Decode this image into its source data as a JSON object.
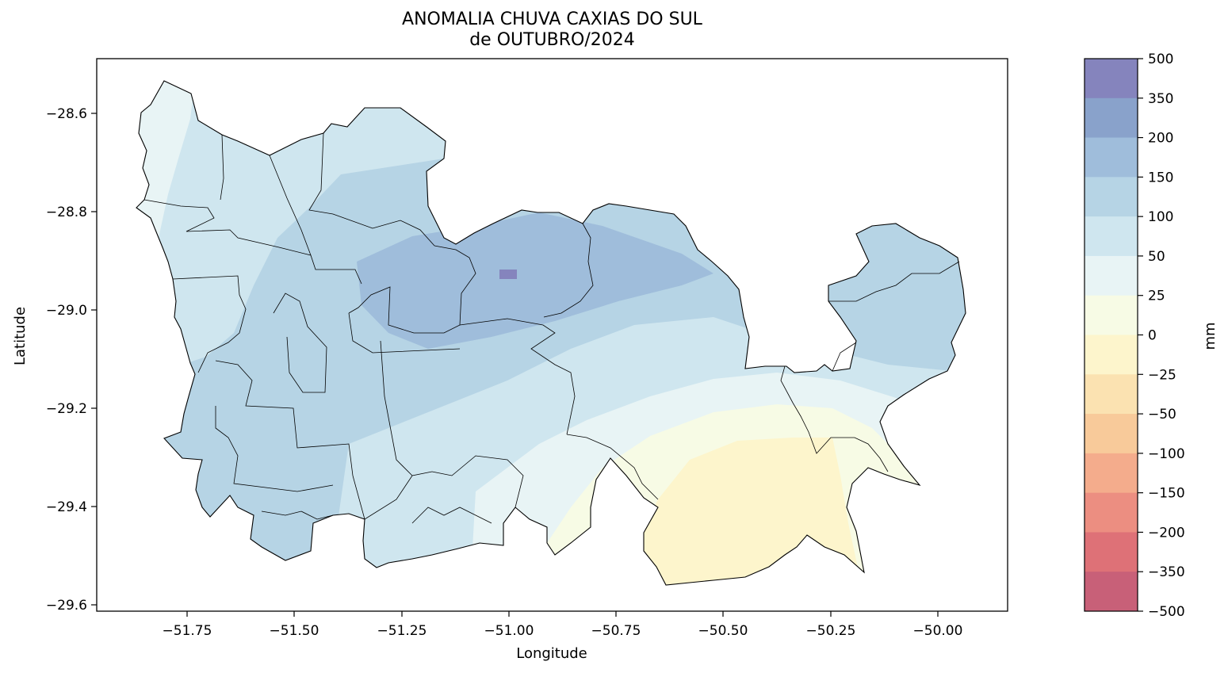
{
  "title_line1": "ANOMALIA CHUVA CAXIAS DO SUL",
  "title_line2": "de OUTUBRO/2024",
  "map": {
    "xlabel": "Longitude",
    "ylabel": "Latitude",
    "x_ticks": [
      "−51.75",
      "−51.50",
      "−51.25",
      "−51.00",
      "−50.75",
      "−50.50",
      "−50.25",
      "−50.00"
    ],
    "y_ticks": [
      "−28.6",
      "−28.8",
      "−29.0",
      "−29.2",
      "−29.4",
      "−29.6"
    ],
    "lon_range": [
      -51.96,
      -49.83
    ],
    "lat_range": [
      -29.62,
      -28.5
    ],
    "anomaly_zones_mm": {
      "northwest": "50 to 100",
      "central_north": "150 to 200",
      "center": "100 to 150",
      "east_north": "50 to 100",
      "southeast_strip": "25 to 50 / 0 to 25",
      "south_east_core": "-25 to 0"
    }
  },
  "colorbar": {
    "label": "mm",
    "levels": [
      "500",
      "350",
      "200",
      "150",
      "100",
      "50",
      "25",
      "0",
      "−25",
      "−50",
      "−100",
      "−150",
      "−200",
      "−350",
      "−500"
    ],
    "colors": [
      "#8584bd",
      "#89a2cb",
      "#9fbddb",
      "#b6d4e5",
      "#cfe6ef",
      "#e8f4f5",
      "#f7fbe5",
      "#fdf5cc",
      "#fbe2b1",
      "#f8ca9a",
      "#f4ac8c",
      "#ec8e81",
      "#de7177",
      "#c86078"
    ]
  }
}
